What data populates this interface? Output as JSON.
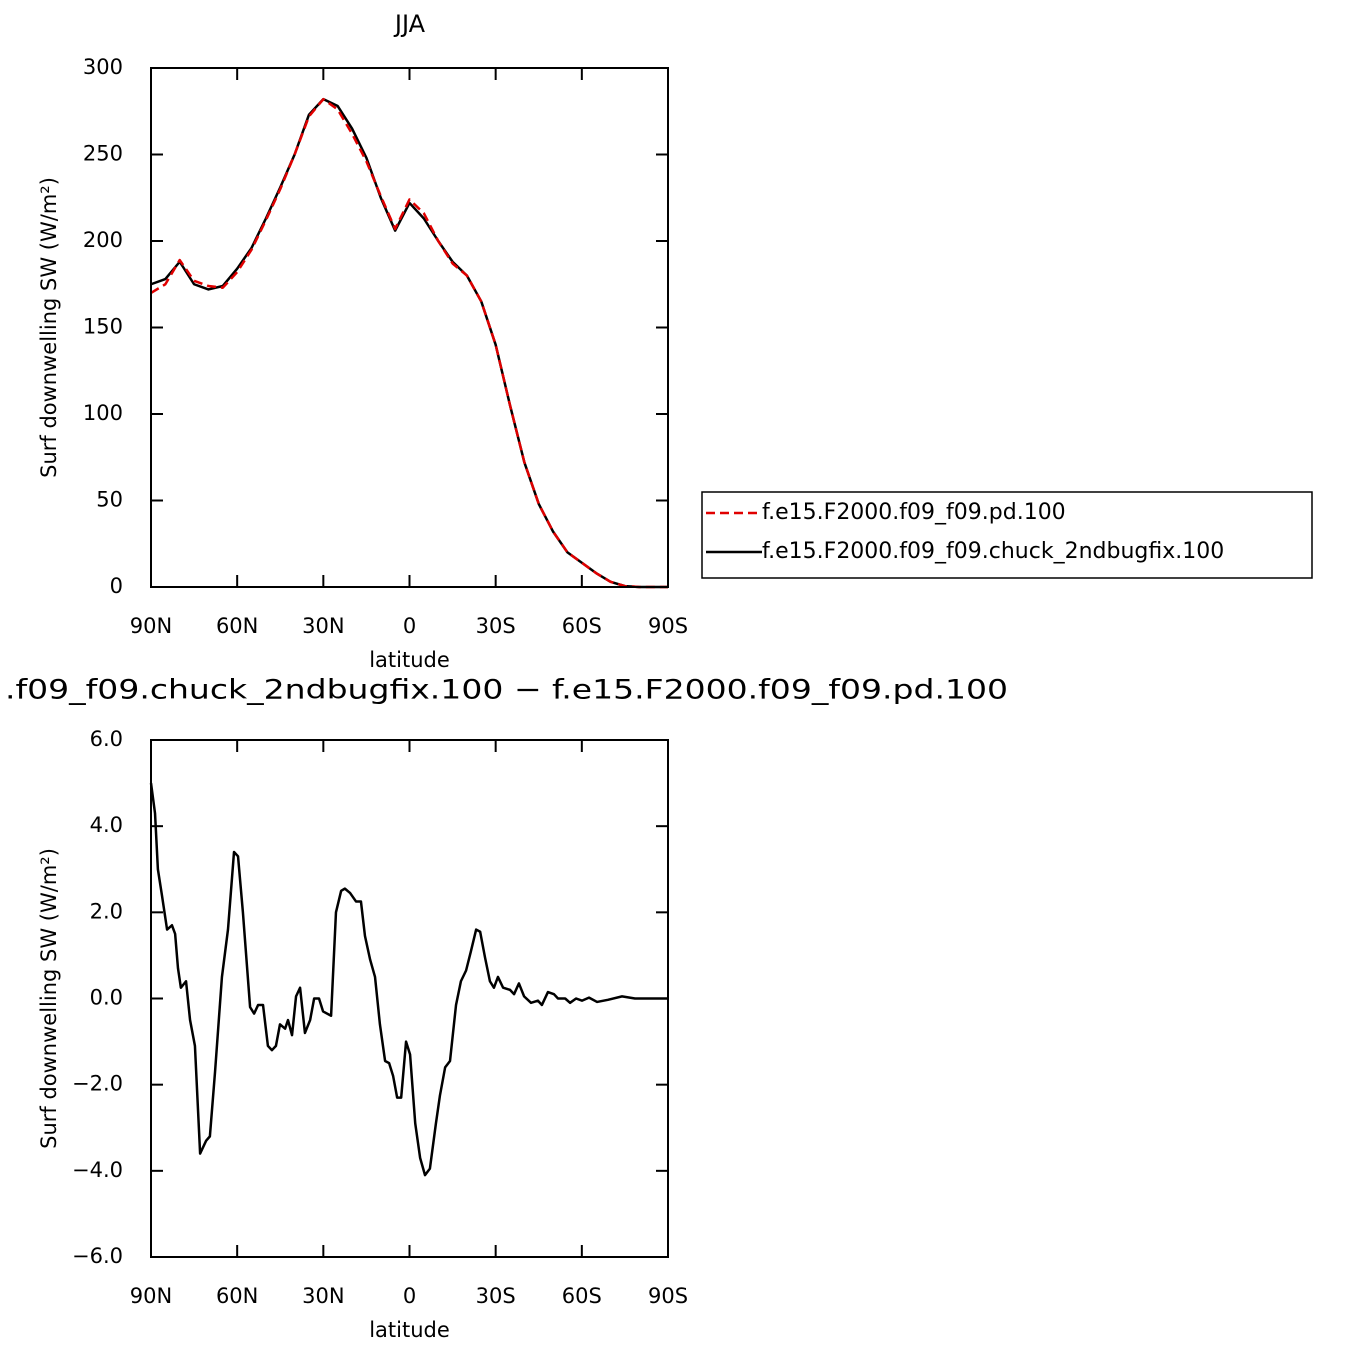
{
  "chart_data": [
    {
      "type": "line",
      "title": "JJA",
      "xlabel": "latitude",
      "ylabel": "Surf downwelling SW (W/m²)",
      "xlim": [
        90,
        -90
      ],
      "xticks": [
        {
          "value": 90,
          "label": "90N"
        },
        {
          "value": 60,
          "label": "60N"
        },
        {
          "value": 30,
          "label": "30N"
        },
        0,
        {
          "value": -30,
          "label": "30S"
        },
        {
          "value": -60,
          "label": "60S"
        },
        {
          "value": -90,
          "label": "90S"
        }
      ],
      "ylim": [
        0,
        300
      ],
      "yticks": [
        0,
        50,
        100,
        150,
        200,
        250,
        300
      ],
      "legend": "outside right",
      "x": [
        90,
        85,
        80,
        75,
        70,
        65,
        60,
        55,
        50,
        45,
        40,
        35,
        30,
        25,
        20,
        15,
        10,
        5,
        0,
        -5,
        -10,
        -15,
        -20,
        -25,
        -30,
        -35,
        -40,
        -45,
        -50,
        -55,
        -60,
        -65,
        -70,
        -75,
        -80,
        -85,
        -90
      ],
      "series": [
        {
          "name": "f.e15.F2000.f09_f09.pd.100",
          "color": "#e00000",
          "dash": true,
          "values": [
            170,
            175,
            189,
            177,
            174,
            173,
            182,
            195,
            212,
            230,
            250,
            272,
            282,
            276,
            262,
            246,
            226,
            207,
            224,
            216,
            200,
            187,
            180,
            165,
            140,
            105,
            72,
            48,
            32,
            20,
            14,
            8,
            3,
            0.5,
            0,
            0,
            0
          ]
        },
        {
          "name": "f.e15.F2000.f09_f09.chuck_2ndbugfix.100",
          "color": "#000000",
          "dash": false,
          "values": [
            175,
            178,
            188,
            175,
            172,
            174,
            184,
            196,
            213,
            231,
            250,
            273,
            282,
            278,
            265,
            248,
            225,
            206,
            222,
            213,
            200,
            188,
            180,
            165,
            140,
            105,
            72,
            48,
            32,
            20,
            14,
            8,
            3,
            0.5,
            0,
            0,
            0
          ]
        }
      ]
    },
    {
      "type": "line",
      "title": ".f09_f09.chuck_2ndbugfix.100 − f.e15.F2000.f09_f09.pd.100",
      "xlabel": "latitude",
      "ylabel": "Surf downwelling SW (W/m²)",
      "xlim": [
        90,
        -90
      ],
      "xticks": [
        {
          "value": 90,
          "label": "90N"
        },
        {
          "value": 60,
          "label": "60N"
        },
        {
          "value": 30,
          "label": "30N"
        },
        0,
        {
          "value": -30,
          "label": "30S"
        },
        {
          "value": -60,
          "label": "60S"
        },
        {
          "value": -90,
          "label": "90S"
        }
      ],
      "ylim": [
        -6,
        6
      ],
      "yticks": [
        {
          "value": -6,
          "label": "−6.0"
        },
        {
          "value": -4,
          "label": "−4.0"
        },
        {
          "value": -2,
          "label": "−2.0"
        },
        {
          "value": 0,
          "label": "0.0"
        },
        {
          "value": 2,
          "label": "2.0"
        },
        {
          "value": 4,
          "label": "4.0"
        },
        {
          "value": 6,
          "label": "6.0"
        }
      ],
      "x": [
        90,
        88.6,
        87.6,
        86.2,
        84.4,
        82.7,
        81.6,
        80.6,
        79.6,
        77.8,
        76.4,
        74.7,
        72.9,
        70.8,
        69.5,
        67.7,
        65.3,
        63.2,
        61.1,
        59.7,
        58.0,
        55.5,
        54.1,
        52.7,
        51.0,
        49.3,
        47.9,
        46.5,
        45.1,
        43.3,
        42.3,
        40.9,
        39.5,
        38.1,
        36.4,
        34.6,
        33.2,
        31.5,
        30.1,
        27.3,
        25.6,
        23.8,
        22.5,
        20.7,
        18.6,
        16.9,
        15.5,
        13.7,
        12.0,
        10.3,
        8.5,
        7.1,
        5.7,
        4.3,
        2.9,
        1.2,
        -0.2,
        -2.0,
        -3.7,
        -5.4,
        -7.1,
        -9.2,
        -10.6,
        -12.4,
        -14.1,
        -16.2,
        -17.9,
        -19.7,
        -21.4,
        -23.2,
        -24.6,
        -26.3,
        -28.0,
        -29.4,
        -30.8,
        -32.6,
        -35.0,
        -36.4,
        -38.1,
        -39.9,
        -42.3,
        -44.7,
        -46.1,
        -48.2,
        -50.3,
        -51.7,
        -54.2,
        -55.9,
        -58.0,
        -60.1,
        -62.5,
        -65.3,
        -69.1,
        -74.0,
        -78.5,
        -90
      ],
      "series": [
        {
          "color": "#000000",
          "dash": false,
          "values": [
            5.0,
            4.3,
            3.0,
            2.4,
            1.6,
            1.7,
            1.5,
            0.7,
            0.25,
            0.4,
            -0.5,
            -1.1,
            -3.6,
            -3.3,
            -3.2,
            -1.7,
            0.5,
            1.6,
            3.4,
            3.3,
            2.0,
            -0.2,
            -0.35,
            -0.15,
            -0.15,
            -1.1,
            -1.2,
            -1.1,
            -0.6,
            -0.7,
            -0.5,
            -0.85,
            0.05,
            0.25,
            -0.8,
            -0.5,
            0.0,
            0.0,
            -0.3,
            -0.4,
            2.0,
            2.5,
            2.55,
            2.45,
            2.25,
            2.25,
            1.45,
            0.9,
            0.5,
            -0.6,
            -1.45,
            -1.5,
            -1.8,
            -2.3,
            -2.3,
            -1.0,
            -1.3,
            -2.9,
            -3.7,
            -4.1,
            -3.95,
            -2.9,
            -2.25,
            -1.6,
            -1.45,
            -0.15,
            0.4,
            0.65,
            1.1,
            1.6,
            1.55,
            0.95,
            0.4,
            0.25,
            0.5,
            0.25,
            0.2,
            0.1,
            0.35,
            0.05,
            -0.1,
            -0.05,
            -0.15,
            0.15,
            0.1,
            0.0,
            0.0,
            -0.1,
            0.0,
            -0.05,
            0.02,
            -0.08,
            -0.03,
            0.05,
            0,
            0
          ]
        }
      ]
    }
  ]
}
